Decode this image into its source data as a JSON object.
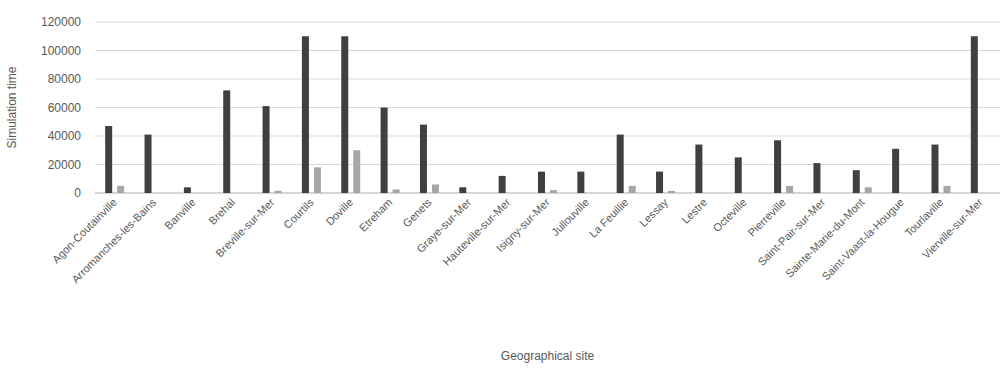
{
  "chart_data": {
    "type": "bar",
    "x_label": "Geographical site",
    "y_label": "Simulation time",
    "categories": [
      "Agon-Coutainville",
      "Arromanches-les-Bains",
      "Banville",
      "Brehal",
      "Breville-sur-Mer",
      "Courtils",
      "Doville",
      "Etreham",
      "Genets",
      "Graye-sur-Mer",
      "Hauteville-sur-Mer",
      "Isigny-sur-Mer",
      "Jullouville",
      "La Feuillie",
      "Lessay",
      "Lestre",
      "Octeville",
      "Pierreville",
      "Saint-Pair-sur-Mer",
      "Sainte-Marie-du-Mont",
      "Saint-Vaast-la-Hougue",
      "Tourlaville",
      "Vierville-sur-Mer"
    ],
    "series": [
      {
        "color": "#404040",
        "values": [
          47000,
          41000,
          4000,
          72000,
          61000,
          110000,
          110000,
          60000,
          48000,
          4000,
          12000,
          15000,
          15000,
          41000,
          15000,
          34000,
          25000,
          37000,
          21000,
          16000,
          31000,
          34000,
          110000
        ]
      },
      {
        "color": "#a6a6a6",
        "values": [
          5000,
          0,
          0,
          0,
          1500,
          18000,
          30000,
          2500,
          6000,
          0,
          0,
          2000,
          0,
          5000,
          1500,
          0,
          0,
          5000,
          0,
          4000,
          0,
          5000,
          0
        ]
      }
    ],
    "ylim": [
      0,
      120000
    ],
    "yticks": [
      0,
      20000,
      40000,
      60000,
      80000,
      100000,
      120000
    ],
    "grid": true
  }
}
